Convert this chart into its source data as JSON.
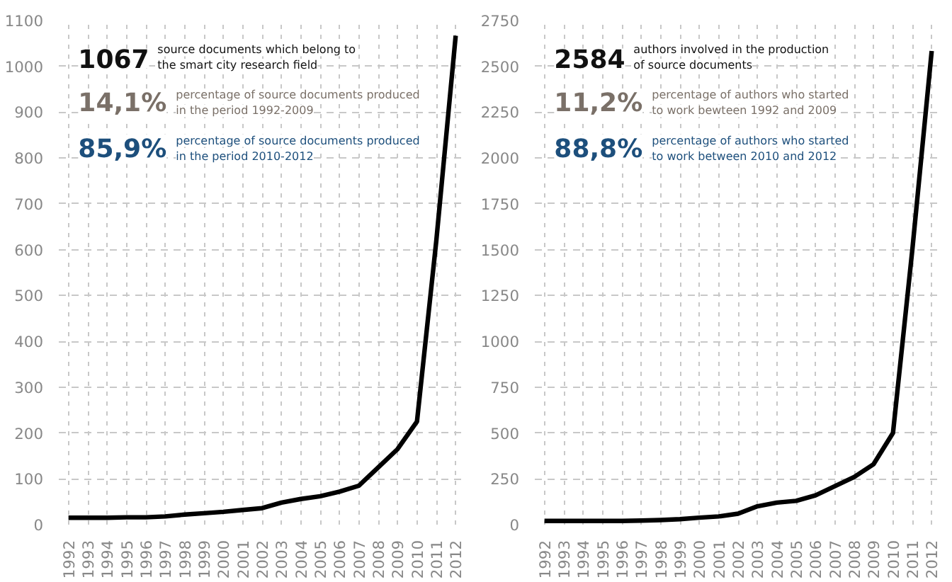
{
  "chart_data": [
    {
      "type": "line",
      "x": [
        1992,
        1993,
        1994,
        1995,
        1996,
        1997,
        1998,
        1999,
        2000,
        2001,
        2002,
        2003,
        2004,
        2005,
        2006,
        2007,
        2008,
        2009,
        2010,
        2011,
        2012
      ],
      "series": [
        {
          "color": "#000000",
          "values": [
            15,
            15,
            15,
            16,
            16,
            18,
            22,
            25,
            28,
            32,
            36,
            48,
            56,
            62,
            72,
            85,
            125,
            165,
            225,
            620,
            1067
          ]
        }
      ],
      "xlim": [
        1991.5,
        2012.5
      ],
      "xticks": [
        1992,
        1993,
        1994,
        1995,
        1996,
        1997,
        1998,
        1999,
        2000,
        2001,
        2002,
        2003,
        2004,
        2005,
        2006,
        2007,
        2008,
        2009,
        2010,
        2011,
        2012
      ],
      "ylim": [
        0,
        1100
      ],
      "yticks": [
        0,
        100,
        200,
        300,
        400,
        500,
        600,
        700,
        800,
        900,
        1000,
        1100
      ],
      "grid": true,
      "annotations": [
        "1067 source documents which belong to the smart city research field",
        "14,1% percentage of source documents produced in the period 1992-2009",
        "85,9% percentage of source documents produced in the period 2010-2012"
      ]
    },
    {
      "type": "line",
      "x": [
        1992,
        1993,
        1994,
        1995,
        1996,
        1997,
        1998,
        1999,
        2000,
        2001,
        2002,
        2003,
        2004,
        2005,
        2006,
        2007,
        2008,
        2009,
        2010,
        2011,
        2012
      ],
      "series": [
        {
          "color": "#000000",
          "values": [
            20,
            20,
            20,
            20,
            20,
            22,
            25,
            30,
            38,
            45,
            60,
            100,
            120,
            130,
            160,
            210,
            260,
            330,
            500,
            1500,
            2584
          ]
        }
      ],
      "xlim": [
        1991.5,
        2012.5
      ],
      "xticks": [
        1992,
        1993,
        1994,
        1995,
        1996,
        1997,
        1998,
        1999,
        2000,
        2001,
        2002,
        2003,
        2004,
        2005,
        2006,
        2007,
        2008,
        2009,
        2010,
        2011,
        2012
      ],
      "ylim": [
        0,
        2750
      ],
      "yticks": [
        0,
        250,
        500,
        750,
        1000,
        1250,
        1500,
        1750,
        2000,
        2250,
        2500,
        2750
      ],
      "grid": true,
      "annotations": [
        "2584 authors involved in the production of source documents",
        "11,2% percentage of authors who started to work bewteen 1992 and 2009",
        "88,8% percentage of authors who started to work between 2010 and 2012"
      ]
    }
  ]
}
